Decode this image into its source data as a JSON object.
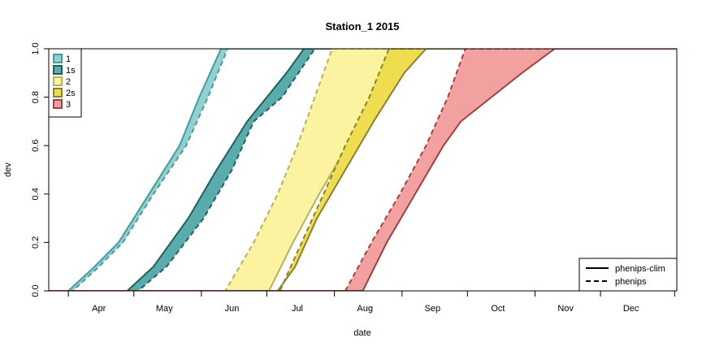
{
  "chart_data": {
    "type": "area",
    "title": "Station_1 2015",
    "xlabel": "date",
    "ylabel": "dev",
    "ylim": [
      0,
      1
    ],
    "y_ticks": [
      "0.0",
      "0.2",
      "0.4",
      "0.6",
      "0.8",
      "1.0"
    ],
    "x_ticks": [
      "Apr",
      "May",
      "Jun",
      "Jul",
      "Aug",
      "Sep",
      "Oct",
      "Nov",
      "Dec"
    ],
    "grid": false,
    "legend_generations": {
      "position": "top-left",
      "entries": [
        {
          "label": "1",
          "fill": "#8fd1d1",
          "stroke": "#4a9a9a"
        },
        {
          "label": "1s",
          "fill": "#5aacac",
          "stroke": "#1f5f5f"
        },
        {
          "label": "2",
          "fill": "#fbf3a0",
          "stroke": "#b8b060"
        },
        {
          "label": "2s",
          "fill": "#eedd4e",
          "stroke": "#8a8030"
        },
        {
          "label": "3",
          "fill": "#f2a0a0",
          "stroke": "#a04040"
        }
      ]
    },
    "legend_models": {
      "position": "bottom-right",
      "entries": [
        {
          "label": "phenips-clim",
          "linestyle": "solid"
        },
        {
          "label": "phenips",
          "linestyle": "dashed"
        }
      ]
    },
    "bands": [
      {
        "name": "1",
        "fill": "#8fd1d1",
        "edge_color": "#4a9a9a",
        "lower_dashed": [
          [
            "Apr-03",
            0.0
          ],
          [
            "Apr-15",
            0.1
          ],
          [
            "Apr-26",
            0.2
          ],
          [
            "May-10",
            0.4
          ],
          [
            "May-25",
            0.6
          ],
          [
            "Jun-04",
            0.8
          ],
          [
            "Jun-13",
            1.0
          ]
        ],
        "upper_solid": [
          [
            "Apr-01",
            0.0
          ],
          [
            "Apr-13",
            0.1
          ],
          [
            "Apr-24",
            0.2
          ],
          [
            "May-08",
            0.4
          ],
          [
            "May-22",
            0.6
          ],
          [
            "May-31",
            0.8
          ],
          [
            "Jun-05",
            0.9
          ],
          [
            "Jun-10",
            1.0
          ]
        ]
      },
      {
        "name": "1s",
        "fill": "#5aacac",
        "edge_color": "#1f5f5f",
        "lower_dashed": [
          [
            "May-03",
            0.0
          ],
          [
            "May-16",
            0.1
          ],
          [
            "Jun-02",
            0.3
          ],
          [
            "Jun-15",
            0.5
          ],
          [
            "Jun-25",
            0.7
          ],
          [
            "Jul-08",
            0.8
          ],
          [
            "Jul-23",
            1.0
          ]
        ],
        "upper_solid": [
          [
            "Apr-28",
            0.0
          ],
          [
            "May-10",
            0.1
          ],
          [
            "May-26",
            0.3
          ],
          [
            "Jun-08",
            0.5
          ],
          [
            "Jun-22",
            0.7
          ],
          [
            "Jul-01",
            0.8
          ],
          [
            "Jul-10",
            0.9
          ],
          [
            "Jul-18",
            1.0
          ]
        ]
      },
      {
        "name": "2",
        "fill": "#fbf3a0",
        "edge_color": "#b8b060",
        "lower_dashed": [
          [
            "Jun-12",
            0.0
          ],
          [
            "Jun-25",
            0.2
          ],
          [
            "Jul-06",
            0.4
          ],
          [
            "Jul-15",
            0.6
          ],
          [
            "Jul-23",
            0.8
          ],
          [
            "Jul-31",
            1.0
          ]
        ],
        "upper_solid": [
          [
            "Jul-02",
            0.0
          ],
          [
            "Jul-13",
            0.2
          ],
          [
            "Jul-25",
            0.4
          ],
          [
            "Aug-07",
            0.6
          ],
          [
            "Aug-20",
            0.8
          ],
          [
            "Sep-05",
            1.0
          ]
        ]
      },
      {
        "name": "2s",
        "fill": "#eedd4e",
        "edge_color": "#8a8030",
        "lower_dashed": [
          [
            "Jul-07",
            0.0
          ],
          [
            "Jul-17",
            0.2
          ],
          [
            "Jul-27",
            0.4
          ],
          [
            "Aug-06",
            0.6
          ],
          [
            "Aug-17",
            0.8
          ],
          [
            "Aug-26",
            1.0
          ]
        ],
        "upper_solid": [
          [
            "Jul-06",
            0.0
          ],
          [
            "Jul-14",
            0.1
          ],
          [
            "Jul-24",
            0.3
          ],
          [
            "Aug-06",
            0.5
          ],
          [
            "Aug-19",
            0.7
          ],
          [
            "Sep-02",
            0.9
          ],
          [
            "Sep-12",
            1.0
          ]
        ]
      },
      {
        "name": "3",
        "fill": "#f2a0a0",
        "edge_color": "#a04040",
        "lower_dashed": [
          [
            "Aug-06",
            0.0
          ],
          [
            "Aug-18",
            0.2
          ],
          [
            "Aug-31",
            0.4
          ],
          [
            "Sep-12",
            0.6
          ],
          [
            "Sep-22",
            0.8
          ],
          [
            "Sep-30",
            1.0
          ]
        ],
        "upper_solid": [
          [
            "Aug-14",
            0.0
          ],
          [
            "Aug-25",
            0.2
          ],
          [
            "Sep-07",
            0.4
          ],
          [
            "Sep-20",
            0.6
          ],
          [
            "Sep-28",
            0.7
          ],
          [
            "Oct-12",
            0.8
          ],
          [
            "Oct-26",
            0.9
          ],
          [
            "Nov-10",
            1.0
          ]
        ]
      }
    ]
  }
}
